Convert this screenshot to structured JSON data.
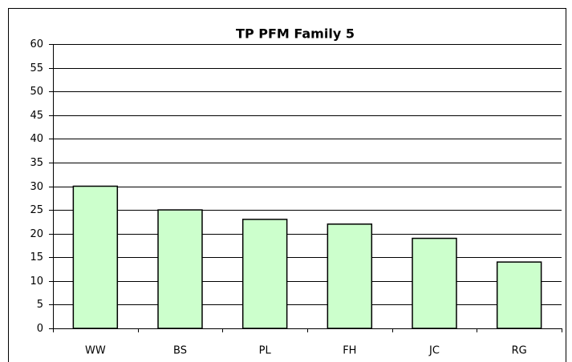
{
  "chart_data": {
    "type": "bar",
    "title": "TP PFM Family 5",
    "categories": [
      "WW",
      "BS",
      "PL",
      "FH",
      "JC",
      "RG"
    ],
    "values": [
      30,
      25,
      23,
      22,
      19,
      14
    ],
    "color": "#ccffcc",
    "ylim": [
      0,
      60
    ],
    "yticks": [
      0,
      5,
      10,
      15,
      20,
      25,
      30,
      35,
      40,
      45,
      50,
      55,
      60
    ],
    "grid": true
  }
}
